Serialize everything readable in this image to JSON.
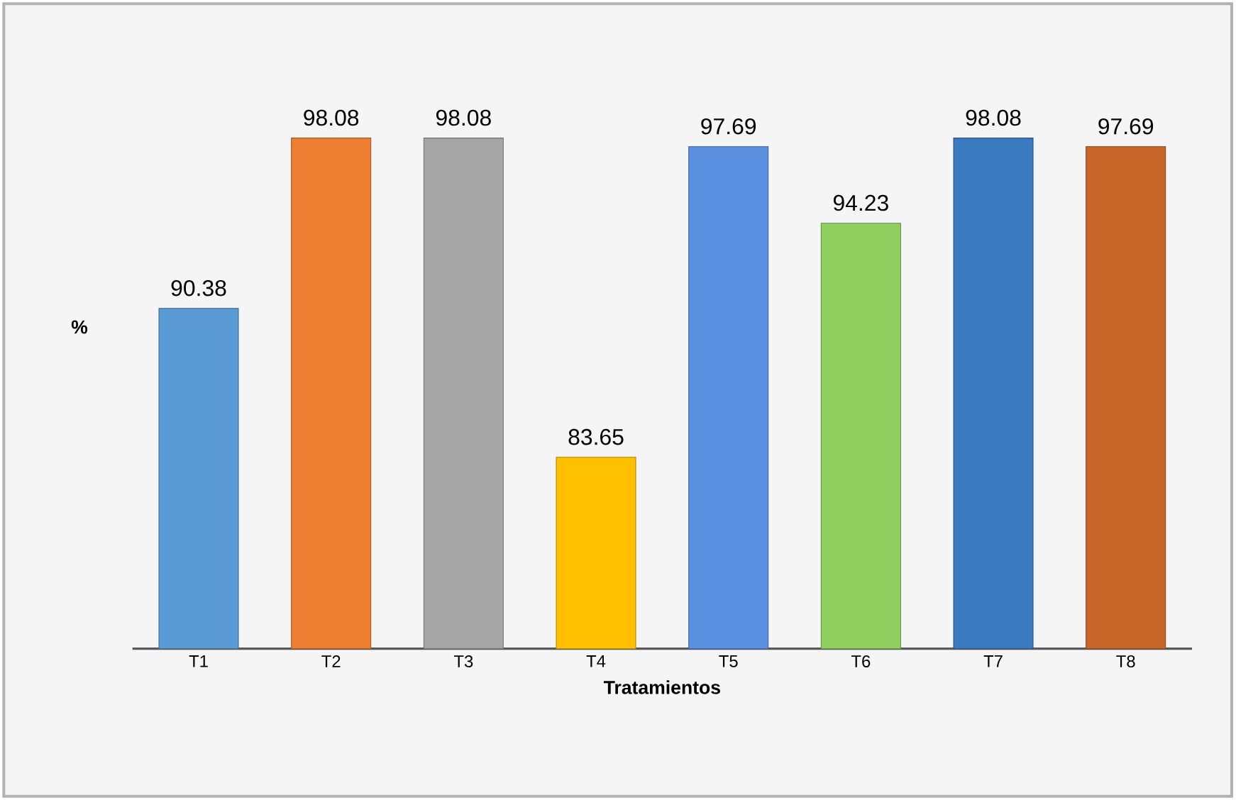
{
  "chart_data": {
    "type": "bar",
    "xlabel": "Tratamientos",
    "ylabel": "%",
    "categories": [
      "T1",
      "T2",
      "T3",
      "T4",
      "T5",
      "T6",
      "T7",
      "T8"
    ],
    "values": [
      90.38,
      98.08,
      98.08,
      83.65,
      97.69,
      94.23,
      98.08,
      97.69
    ],
    "value_labels": [
      "90.38",
      "98.08",
      "98.08",
      "83.65",
      "97.69",
      "94.23",
      "98.08",
      "97.69"
    ],
    "colors": [
      "#5b9bd5",
      "#ed7d31",
      "#a5a5a5",
      "#ffc000",
      "#5b8fe0",
      "#8fce5f",
      "#3a7bbf",
      "#c8662a"
    ],
    "ylim": [
      75,
      98.08
    ],
    "tick_labels": "x"
  }
}
